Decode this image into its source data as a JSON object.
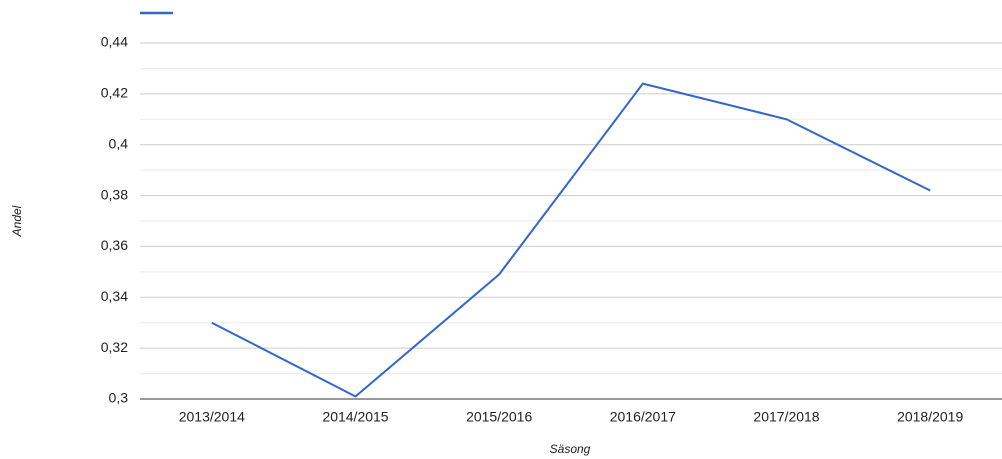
{
  "chart_data": {
    "type": "line",
    "x_label": "Säsong",
    "y_label": "Andel",
    "categories": [
      "2013/2014",
      "2014/2015",
      "2015/2016",
      "2016/2017",
      "2017/2018",
      "2018/2019"
    ],
    "series": [
      {
        "color": "#3366cc",
        "values": [
          0.33,
          0.301,
          0.349,
          0.424,
          0.41,
          0.382
        ]
      }
    ],
    "ylim": [
      0.3,
      0.44
    ],
    "yticks": [
      {
        "value": 0.3,
        "label": "0,3"
      },
      {
        "value": 0.32,
        "label": "0,32"
      },
      {
        "value": 0.34,
        "label": "0,34"
      },
      {
        "value": 0.36,
        "label": "0,36"
      },
      {
        "value": 0.38,
        "label": "0,38"
      },
      {
        "value": 0.4,
        "label": "0,4"
      },
      {
        "value": 0.42,
        "label": "0,42"
      },
      {
        "value": 0.44,
        "label": "0,44"
      }
    ],
    "grid": true,
    "minor_grid": true,
    "legend": "top-left"
  }
}
